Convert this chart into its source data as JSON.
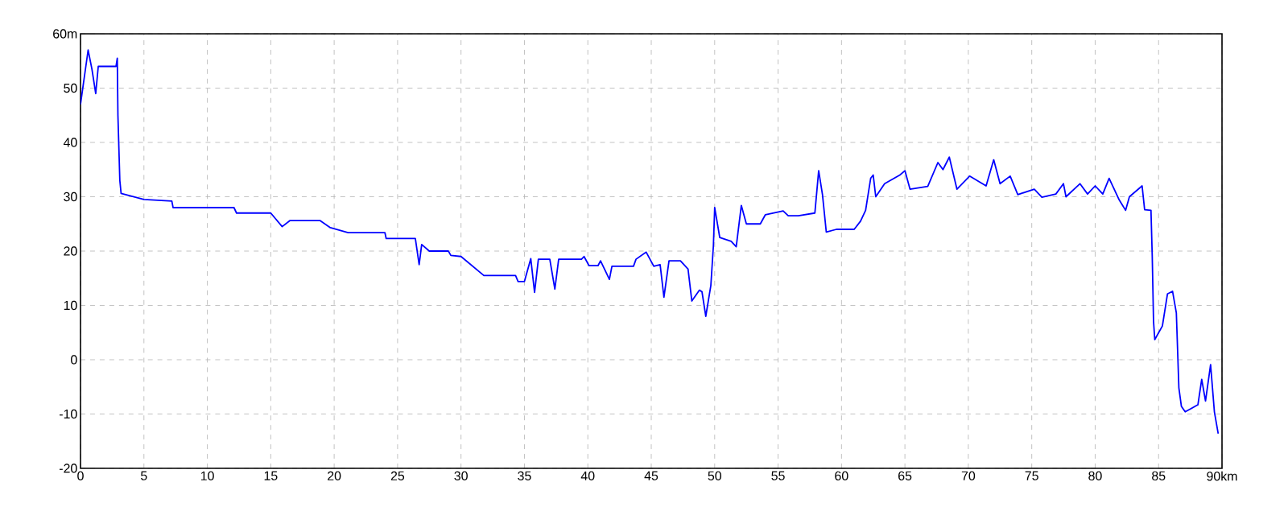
{
  "chart_data": {
    "type": "line",
    "xlim": [
      0,
      90
    ],
    "ylim": [
      -20,
      60
    ],
    "xticks": [
      0,
      5,
      10,
      15,
      20,
      25,
      30,
      35,
      40,
      45,
      50,
      55,
      60,
      65,
      70,
      75,
      80,
      85,
      {
        "value": 90,
        "label": "90km"
      }
    ],
    "yticks": [
      -20,
      -10,
      0,
      10,
      20,
      30,
      40,
      50,
      {
        "value": 60,
        "label": "60m"
      }
    ],
    "grid": true,
    "series": [
      {
        "color": "#0000ff",
        "x": [
          0,
          0.6,
          0.9,
          1.2,
          1.4,
          2.8,
          2.9,
          2.95,
          3.1,
          3.2,
          5,
          7.2,
          7.3,
          12.1,
          12.3,
          15,
          15.9,
          16.5,
          18.9,
          19.7,
          21.1,
          24,
          24.1,
          26.4,
          26.7,
          26.9,
          27.5,
          29,
          29.2,
          30,
          31.8,
          34.3,
          34.5,
          35,
          35.5,
          35.8,
          36.1,
          37,
          37.4,
          37.7,
          39.5,
          39.7,
          40.1,
          40.8,
          41,
          41.7,
          41.9,
          43.6,
          43.8,
          44.6,
          45.2,
          45.7,
          46,
          46.4,
          47.3,
          47.9,
          48.2,
          48.8,
          49,
          49.3,
          49.7,
          49.9,
          50,
          50.4,
          51.3,
          51.7,
          52.1,
          52.5,
          53.6,
          54,
          55.4,
          55.8,
          56.6,
          57.9,
          58.2,
          58.5,
          58.8,
          59.6,
          61,
          61.5,
          61.9,
          62.3,
          62.5,
          62.7,
          63.4,
          64.6,
          65,
          65.4,
          66.8,
          67.6,
          68,
          68.5,
          69.1,
          70.1,
          71.4,
          72,
          72.5,
          73.3,
          73.9,
          75.2,
          75.8,
          76.9,
          77.5,
          77.7,
          78.8,
          79.4,
          80,
          80.6,
          81.1,
          81.9,
          82.4,
          82.7,
          83.7,
          83.9,
          84.4,
          84.5,
          84.6,
          84.7,
          85.3,
          85.7,
          86.1,
          86.4,
          86.6,
          86.8,
          87.1,
          88.1,
          88.4,
          88.7,
          89.1,
          89.4,
          89.7
        ],
        "values": [
          47,
          57,
          53.5,
          49,
          54,
          54,
          55.5,
          45,
          33,
          30.6,
          29.5,
          29.2,
          28,
          28,
          27,
          27,
          24.5,
          25.6,
          25.6,
          24.3,
          23.4,
          23.4,
          22.3,
          22.3,
          17.5,
          21.2,
          20,
          20,
          19.2,
          19,
          15.5,
          15.5,
          14.4,
          14.4,
          18.6,
          12.4,
          18.5,
          18.5,
          13,
          18.5,
          18.5,
          19,
          17.3,
          17.3,
          18.2,
          14.8,
          17.2,
          17.2,
          18.5,
          19.8,
          17.2,
          17.5,
          11.5,
          18.2,
          18.2,
          16.7,
          10.8,
          12.8,
          12.5,
          8,
          13.7,
          21,
          28,
          22.5,
          21.8,
          20.8,
          28.4,
          25,
          25,
          26.7,
          27.4,
          26.5,
          26.5,
          27,
          34.8,
          30.4,
          23.5,
          24,
          24,
          25.5,
          27.5,
          33.4,
          34,
          30,
          32.4,
          34,
          34.8,
          31.4,
          31.9,
          36.3,
          35,
          37.3,
          31.4,
          33.8,
          32,
          36.8,
          32.4,
          33.8,
          30.4,
          31.4,
          29.9,
          30.5,
          32.4,
          30,
          32.4,
          30.5,
          32,
          30.5,
          33.4,
          29.4,
          27.5,
          30,
          32,
          27.6,
          27.5,
          19,
          7.1,
          3.7,
          6.2,
          12.1,
          12.6,
          8.6,
          -5.2,
          -8.6,
          -9.6,
          -8.3,
          -3.6,
          -7.6,
          -0.9,
          -9.6,
          -13.6
        ]
      }
    ]
  }
}
